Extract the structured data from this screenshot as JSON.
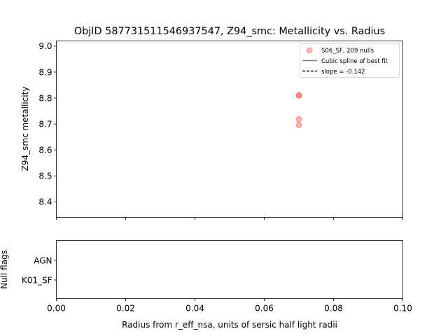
{
  "chart_data": [
    {
      "type": "scatter",
      "title": "ObjID 587731511546937547, Z94_smc: Metallicity vs. Radius",
      "ylabel": "Z94_smc metallicity",
      "xlim": [
        0.0,
        0.1
      ],
      "ylim": [
        8.34,
        9.02
      ],
      "y_ticks": [
        "8.4",
        "8.5",
        "8.6",
        "8.7",
        "8.8",
        "8.9",
        "9.0"
      ],
      "y_tick_values": [
        8.4,
        8.5,
        8.6,
        8.7,
        8.8,
        8.9,
        9.0
      ],
      "x_ticks_values": [
        0.0,
        0.02,
        0.04,
        0.06,
        0.08,
        0.1
      ],
      "grid": false,
      "legend_position": "top-right",
      "legend": [
        {
          "label": "S06_SF, 209 nulls",
          "kind": "marker",
          "color": "#f08080"
        },
        {
          "label": "Cubic spline of best fit",
          "kind": "solid-line",
          "color": "#808080"
        },
        {
          "label": "slope = -0.142",
          "kind": "dashed-line",
          "color": "#000000"
        }
      ],
      "series": [
        {
          "name": "S06_SF, 209 nulls",
          "color": "#ff5555",
          "points": [
            {
              "x": 0.07,
              "y": 8.81
            },
            {
              "x": 0.07,
              "y": 8.81
            },
            {
              "x": 0.07,
              "y": 8.718
            },
            {
              "x": 0.07,
              "y": 8.696
            }
          ]
        }
      ]
    },
    {
      "type": "scatter",
      "xlabel": "Radius from r_eff_nsa, units of sersic half light radii",
      "ylabel": "Null flags",
      "xlim": [
        0.0,
        0.1
      ],
      "x_ticks": [
        "0.00",
        "0.02",
        "0.04",
        "0.06",
        "0.08",
        "0.10"
      ],
      "x_tick_values": [
        0.0,
        0.02,
        0.04,
        0.06,
        0.08,
        0.1
      ],
      "categories": [
        "AGN",
        "K01_SF"
      ],
      "series": []
    }
  ]
}
